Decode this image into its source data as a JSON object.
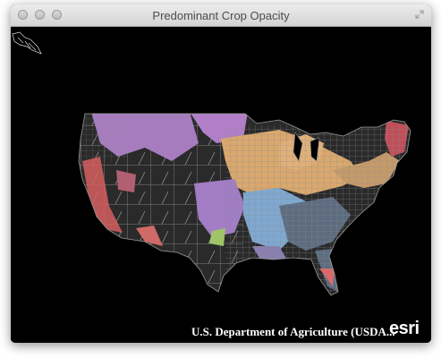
{
  "window": {
    "title": "Predominant Crop Opacity"
  },
  "map": {
    "attribution": "U.S. Department of Agriculture (USDA...",
    "logo": "esri"
  }
}
